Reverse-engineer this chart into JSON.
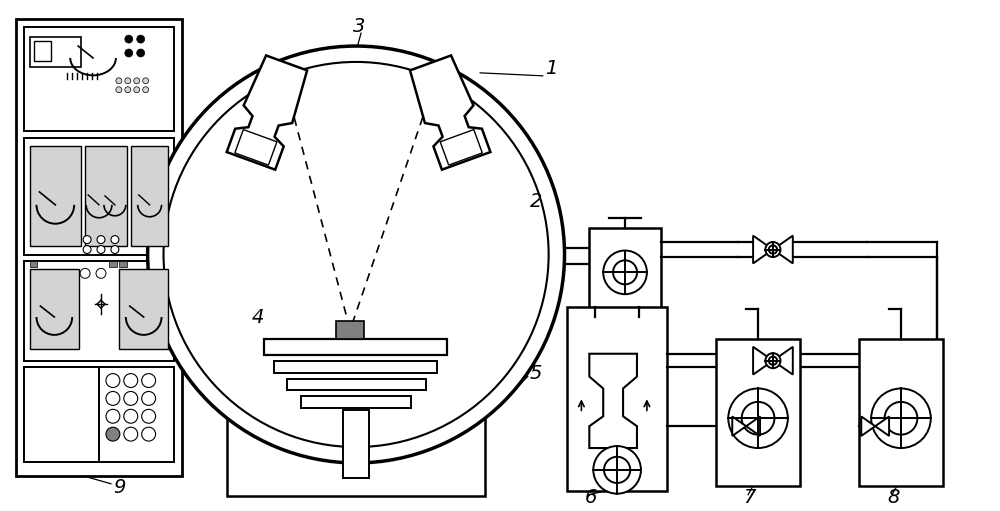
{
  "bg_color": "#ffffff",
  "lw": 1.6,
  "fig_w": 10.0,
  "fig_h": 5.11
}
